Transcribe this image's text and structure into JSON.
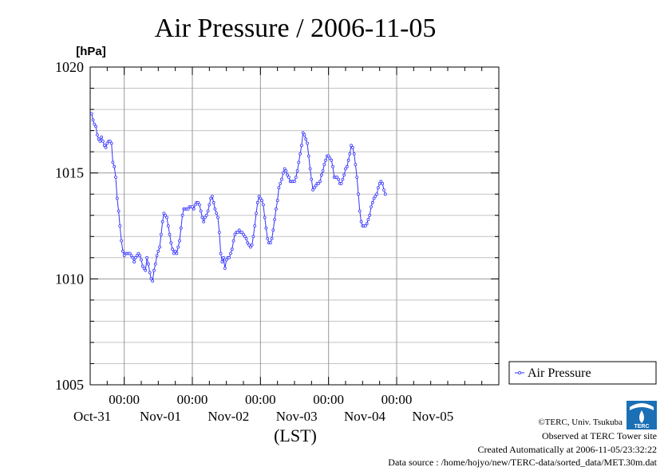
{
  "chart_data": {
    "type": "line",
    "title": "Air Pressure / 2006-11-05",
    "ylabel": "[hPa]",
    "xlabel": "(LST)",
    "ylim": [
      1005,
      1020
    ],
    "xlim": [
      0,
      144
    ],
    "yticks": [
      1005,
      1010,
      1015,
      1020
    ],
    "ytick_labels": [
      "1005",
      "1010",
      "1015",
      "1020"
    ],
    "y_minor_step": 1,
    "x_major_ticks": [
      12,
      36,
      60,
      84,
      108
    ],
    "x_major_labels": [
      "00:00",
      "00:00",
      "00:00",
      "00:00",
      "00:00"
    ],
    "x_date_labels": [
      "Oct-31",
      "Nov-01",
      "Nov-02",
      "Nov-03",
      "Nov-04",
      "Nov-05"
    ],
    "x_date_positions": [
      0,
      24,
      48,
      72,
      96,
      120
    ],
    "grid": true,
    "legend_position": "right",
    "series": [
      {
        "name": "Air Pressure",
        "color": "#3333ff",
        "x_unit": "hours from start of Oct-31 period (0.5 h steps)",
        "values": [
          1017.8,
          1017.5,
          1017.3,
          1017.2,
          1016.8,
          1016.6,
          1016.5,
          1016.7,
          1016.5,
          1016.3,
          1016.2,
          1016.4,
          1016.5,
          1016.5,
          1016.4,
          1015.5,
          1015.3,
          1014.8,
          1013.8,
          1013.2,
          1012.5,
          1011.8,
          1011.3,
          1011.1,
          1011.2,
          1011.2,
          1011.2,
          1011.2,
          1011.1,
          1011.0,
          1010.8,
          1011.0,
          1011.1,
          1011.2,
          1011.1,
          1010.9,
          1010.6,
          1010.5,
          1010.4,
          1011.0,
          1010.7,
          1010.3,
          1010.0,
          1009.9,
          1010.4,
          1010.7,
          1011.1,
          1011.3,
          1011.5,
          1012.1,
          1012.7,
          1013.1,
          1013.0,
          1012.9,
          1012.5,
          1012.1,
          1011.7,
          1011.4,
          1011.2,
          1011.3,
          1011.2,
          1011.5,
          1011.8,
          1012.4,
          1013.0,
          1013.3,
          1013.3,
          1013.3,
          1013.3,
          1013.4,
          1013.4,
          1013.4,
          1013.3,
          1013.5,
          1013.6,
          1013.6,
          1013.5,
          1013.2,
          1012.9,
          1012.7,
          1012.9,
          1013.0,
          1013.2,
          1013.5,
          1013.8,
          1013.9,
          1013.6,
          1013.3,
          1013.1,
          1012.9,
          1012.2,
          1011.2,
          1010.8,
          1011.0,
          1010.5,
          1010.9,
          1011.0,
          1011.0,
          1011.2,
          1011.4,
          1011.8,
          1012.1,
          1012.2,
          1012.2,
          1012.3,
          1012.2,
          1012.2,
          1012.1,
          1012.0,
          1011.9,
          1011.7,
          1011.6,
          1011.5,
          1011.6,
          1012.0,
          1012.5,
          1013.1,
          1013.6,
          1013.9,
          1013.8,
          1013.7,
          1013.5,
          1012.9,
          1012.4,
          1011.9,
          1011.7,
          1011.7,
          1011.9,
          1012.3,
          1012.8,
          1013.3,
          1013.7,
          1014.3,
          1014.5,
          1014.7,
          1015.0,
          1015.2,
          1015.1,
          1014.9,
          1014.8,
          1014.6,
          1014.6,
          1014.6,
          1014.6,
          1014.8,
          1015.1,
          1015.5,
          1015.9,
          1016.3,
          1016.9,
          1016.8,
          1016.6,
          1016.4,
          1015.8,
          1015.2,
          1014.7,
          1014.2,
          1014.3,
          1014.4,
          1014.5,
          1014.5,
          1014.6,
          1014.9,
          1015.1,
          1015.4,
          1015.6,
          1015.8,
          1015.8,
          1015.7,
          1015.6,
          1015.3,
          1014.8,
          1014.8,
          1014.8,
          1014.7,
          1014.5,
          1014.5,
          1014.7,
          1014.9,
          1015.2,
          1015.3,
          1015.6,
          1015.9,
          1016.3,
          1016.2,
          1015.9,
          1015.4,
          1014.8,
          1014.0,
          1013.2,
          1012.7,
          1012.5,
          1012.5,
          1012.5,
          1012.6,
          1012.8,
          1013.0,
          1013.4,
          1013.6,
          1013.8,
          1013.9,
          1014.0,
          1014.3,
          1014.5,
          1014.6,
          1014.5,
          1014.2,
          1014.0
        ]
      }
    ]
  },
  "footer": {
    "copyright": "©TERC, Univ. Tsukuba",
    "observed": "Observed at TERC Tower site",
    "created": "Created Automatically at 2006-11-05/23:32:22",
    "source": "Data source : /home/hojyo/new/TERC-data/sorted_data/MET.30m.dat"
  },
  "logo": {
    "name": "terc-logo-icon",
    "text": "TERC",
    "color": "#1a6fb5"
  }
}
